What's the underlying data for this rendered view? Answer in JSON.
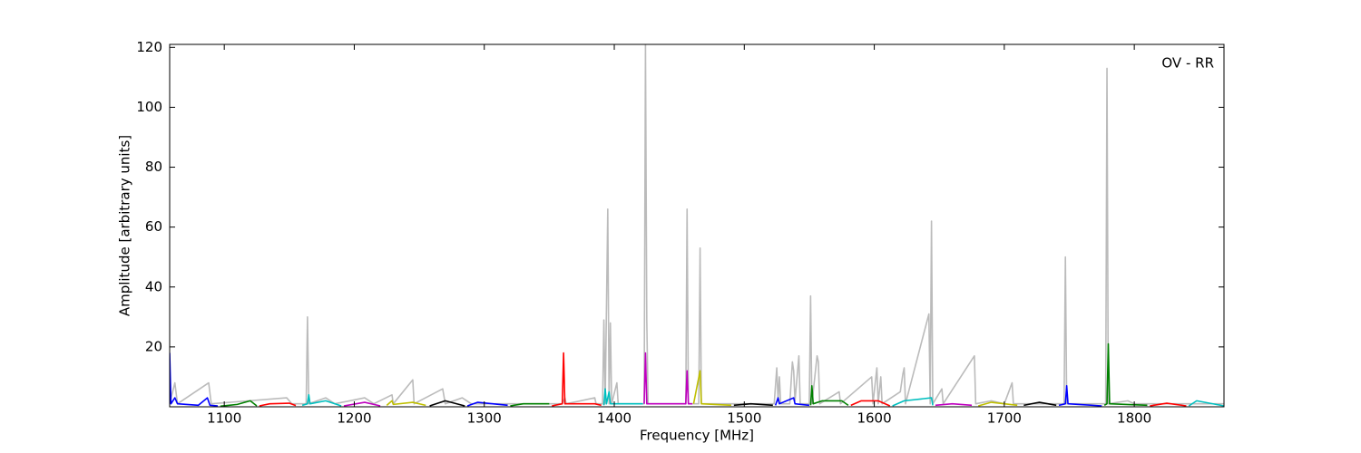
{
  "chart_data": {
    "type": "line",
    "xlabel": "Frequency [MHz]",
    "ylabel": "Amplitude [arbitrary units]",
    "annotation": "OV - RR",
    "xlim": [
      1058,
      1869
    ],
    "ylim": [
      0,
      121
    ],
    "xticks": [
      1100,
      1200,
      1300,
      1400,
      1500,
      1600,
      1700,
      1800
    ],
    "yticks": [
      20,
      40,
      60,
      80,
      100,
      120
    ],
    "series": [
      {
        "color": "#bbbbbb",
        "x": [
          1058,
          1062,
          1064,
          1088,
          1090,
          1148,
          1152,
          1163,
          1164,
          1165,
          1178,
          1185,
          1208,
          1215,
          1229,
          1230,
          1245,
          1246,
          1268,
          1270,
          1283,
          1290,
          1360,
          1362,
          1363,
          1385,
          1386,
          1391,
          1392,
          1393,
          1395,
          1396,
          1397,
          1398,
          1402,
          1403,
          1423,
          1424,
          1425,
          1426,
          1455,
          1456,
          1457,
          1465,
          1466,
          1467,
          1523,
          1525,
          1526,
          1527,
          1528,
          1535,
          1537,
          1538,
          1539,
          1542,
          1543,
          1550,
          1551,
          1552,
          1556,
          1557,
          1558,
          1573,
          1574,
          1598,
          1599,
          1602,
          1603,
          1605,
          1606,
          1620,
          1622,
          1623,
          1624,
          1642,
          1643,
          1644,
          1645,
          1652,
          1653,
          1677,
          1678,
          1690,
          1700,
          1706,
          1707,
          1746,
          1747,
          1748,
          1778,
          1779,
          1780,
          1795,
          1800,
          1808,
          1869
        ],
        "values": [
          1,
          8,
          1,
          8,
          1,
          3,
          1,
          1,
          30,
          1,
          3,
          1,
          3,
          1,
          4,
          1,
          9,
          1,
          6,
          1,
          3,
          1,
          1,
          3,
          1,
          3,
          1,
          1,
          29,
          1,
          66,
          1,
          28,
          1,
          8,
          1,
          1,
          121,
          29,
          1,
          1,
          66,
          1,
          1,
          53,
          1,
          1,
          13,
          2,
          10,
          1,
          1,
          15,
          12,
          2,
          17,
          1,
          1,
          37,
          1,
          17,
          15,
          1,
          5,
          1,
          10,
          1,
          13,
          1,
          10,
          1,
          5,
          11,
          13,
          1,
          31,
          1,
          62,
          1,
          6,
          1,
          17,
          1,
          2,
          1,
          8,
          1,
          1,
          50,
          1,
          1,
          113,
          1,
          2,
          1,
          1,
          1
        ]
      },
      {
        "color": "#0000ff",
        "x": [
          1058,
          1059,
          1062,
          1064,
          1080,
          1087,
          1089,
          1095
        ],
        "values": [
          18,
          1,
          3,
          1,
          0.5,
          3,
          0.5,
          0.3
        ]
      },
      {
        "color": "#008000",
        "x": [
          1097,
          1110,
          1120,
          1125
        ],
        "values": [
          0.2,
          0.8,
          2,
          0.3
        ]
      },
      {
        "color": "#ff0000",
        "x": [
          1127,
          1135,
          1150,
          1155
        ],
        "values": [
          0.3,
          1,
          1.2,
          0.4
        ]
      },
      {
        "color": "#00bfbf",
        "x": [
          1160,
          1164,
          1165,
          1166,
          1178,
          1190
        ],
        "values": [
          0.5,
          1,
          4,
          1,
          2,
          0.3
        ]
      },
      {
        "color": "#bf00bf",
        "x": [
          1192,
          1208,
          1220
        ],
        "values": [
          0.3,
          1.5,
          0.3
        ]
      },
      {
        "color": "#bfbf00",
        "x": [
          1225,
          1229,
          1230,
          1245,
          1255
        ],
        "values": [
          0.5,
          2,
          0.8,
          1.5,
          0.5
        ]
      },
      {
        "color": "#000000",
        "x": [
          1258,
          1270,
          1285
        ],
        "values": [
          0.3,
          2,
          0.3
        ]
      },
      {
        "color": "#0000ff",
        "x": [
          1287,
          1295,
          1318
        ],
        "values": [
          0.3,
          1.5,
          0.5
        ]
      },
      {
        "color": "#008000",
        "x": [
          1320,
          1330,
          1350
        ],
        "values": [
          0.3,
          1,
          1
        ]
      },
      {
        "color": "#ff0000",
        "x": [
          1352,
          1360,
          1361,
          1362,
          1385,
          1390
        ],
        "values": [
          0.3,
          1,
          18,
          1,
          1,
          0.5
        ]
      },
      {
        "color": "#00bfbf",
        "x": [
          1392,
          1393,
          1394,
          1396,
          1397,
          1422
        ],
        "values": [
          0.5,
          6,
          1,
          5,
          1,
          1
        ]
      },
      {
        "color": "#bf00bf",
        "x": [
          1423,
          1424,
          1425,
          1455,
          1456,
          1457,
          1460
        ],
        "values": [
          1,
          18,
          1,
          1,
          12,
          1,
          1
        ]
      },
      {
        "color": "#bfbf00",
        "x": [
          1461,
          1466,
          1467,
          1490
        ],
        "values": [
          1,
          12,
          1,
          0.5
        ]
      },
      {
        "color": "#000000",
        "x": [
          1492,
          1505,
          1522
        ],
        "values": [
          0.5,
          1,
          0.5
        ]
      },
      {
        "color": "#0000ff",
        "x": [
          1524,
          1526,
          1527,
          1538,
          1539,
          1550
        ],
        "values": [
          0.5,
          3,
          1,
          3,
          1,
          0.5
        ]
      },
      {
        "color": "#008000",
        "x": [
          1551,
          1552,
          1553,
          1560,
          1575,
          1580
        ],
        "values": [
          0.5,
          7,
          1,
          2,
          2,
          0.5
        ]
      },
      {
        "color": "#ff0000",
        "x": [
          1582,
          1590,
          1603,
          1612
        ],
        "values": [
          0.5,
          2,
          2,
          0.3
        ]
      },
      {
        "color": "#00bfbf",
        "x": [
          1614,
          1623,
          1644,
          1645
        ],
        "values": [
          0.3,
          2,
          3,
          0.5
        ]
      },
      {
        "color": "#bf00bf",
        "x": [
          1647,
          1660,
          1675
        ],
        "values": [
          0.5,
          1,
          0.5
        ]
      },
      {
        "color": "#bfbf00",
        "x": [
          1680,
          1690,
          1710
        ],
        "values": [
          0.3,
          1.5,
          0.5
        ]
      },
      {
        "color": "#000000",
        "x": [
          1715,
          1727,
          1740
        ],
        "values": [
          0.5,
          1.5,
          0.5
        ]
      },
      {
        "color": "#0000ff",
        "x": [
          1742,
          1747,
          1748,
          1749,
          1775
        ],
        "values": [
          0.5,
          1,
          7,
          1,
          0.3
        ]
      },
      {
        "color": "#008000",
        "x": [
          1777,
          1779,
          1780,
          1781,
          1810
        ],
        "values": [
          0.5,
          1,
          21,
          1,
          0.5
        ]
      },
      {
        "color": "#ff0000",
        "x": [
          1812,
          1825,
          1840
        ],
        "values": [
          0.3,
          1.2,
          0.3
        ]
      },
      {
        "color": "#00bfbf",
        "x": [
          1842,
          1848,
          1869
        ],
        "values": [
          0.3,
          2,
          0.3
        ]
      }
    ]
  }
}
